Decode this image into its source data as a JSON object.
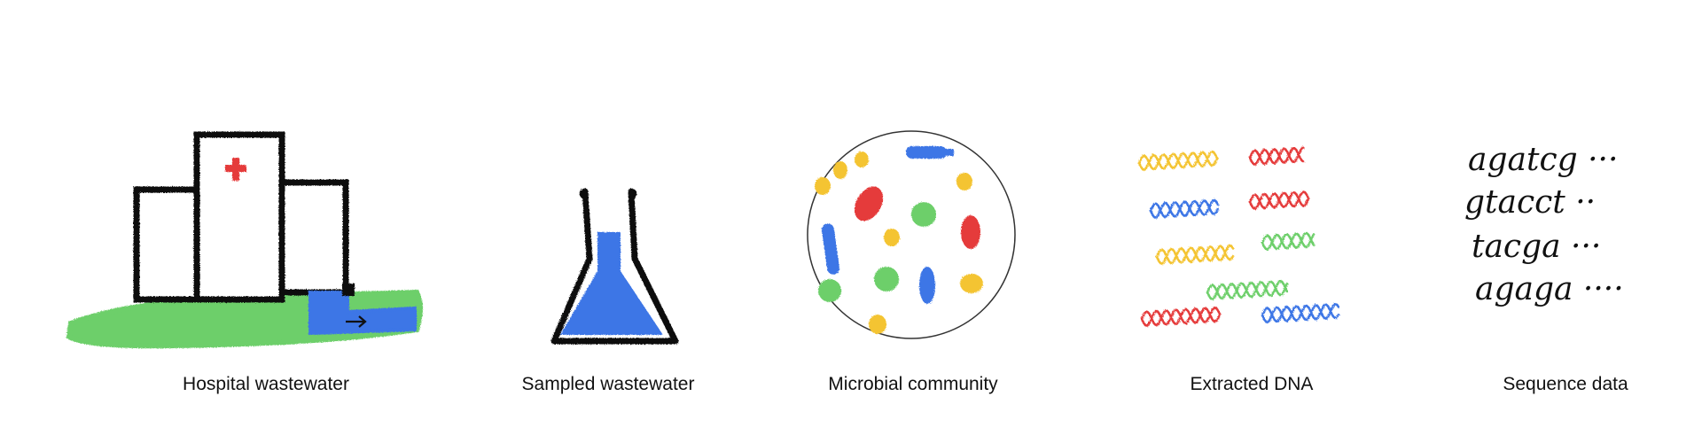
{
  "stages": [
    {
      "id": "hospital",
      "label": "Hospital wastewater"
    },
    {
      "id": "sample",
      "label": "Sampled wastewater"
    },
    {
      "id": "community",
      "label": "Microbial community"
    },
    {
      "id": "dna",
      "label": "Extracted DNA"
    },
    {
      "id": "sequence",
      "label": "Sequence data"
    }
  ],
  "sequence_lines": [
    "agatcg ···",
    "gtacct ··",
    "tacga ···",
    "agaga ····"
  ],
  "colors": {
    "green": "#6dcf6a",
    "blue": "#3c76e6",
    "red": "#e53b3b",
    "yellow": "#f4c430",
    "ink": "#111111"
  }
}
